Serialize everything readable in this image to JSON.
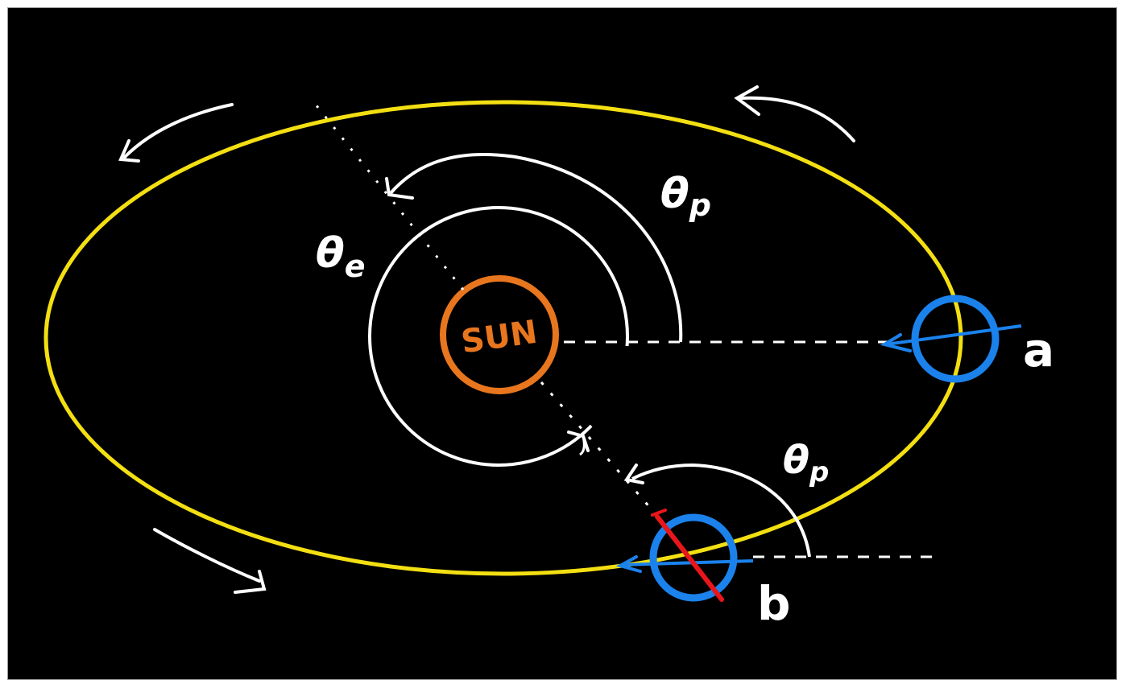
{
  "diagram": {
    "sun_label": "SUN",
    "angle_earth_label": "θ",
    "angle_earth_sub": "e",
    "angle_planet_label": "θ",
    "angle_planet_sub": "p",
    "angle_planet_b_label": "θ",
    "angle_planet_b_sub": "p",
    "position_a_label": "a",
    "position_b_label": "b"
  },
  "colors": {
    "background": "#000000",
    "planet_orbit": "#f3df12",
    "earth_orbit": "#ffffff",
    "sun": "#e8761e",
    "planet": "#1b82ec",
    "sight_line": "#1b82ec",
    "spin_axis": "#e8161a",
    "annotation": "#ffffff"
  }
}
